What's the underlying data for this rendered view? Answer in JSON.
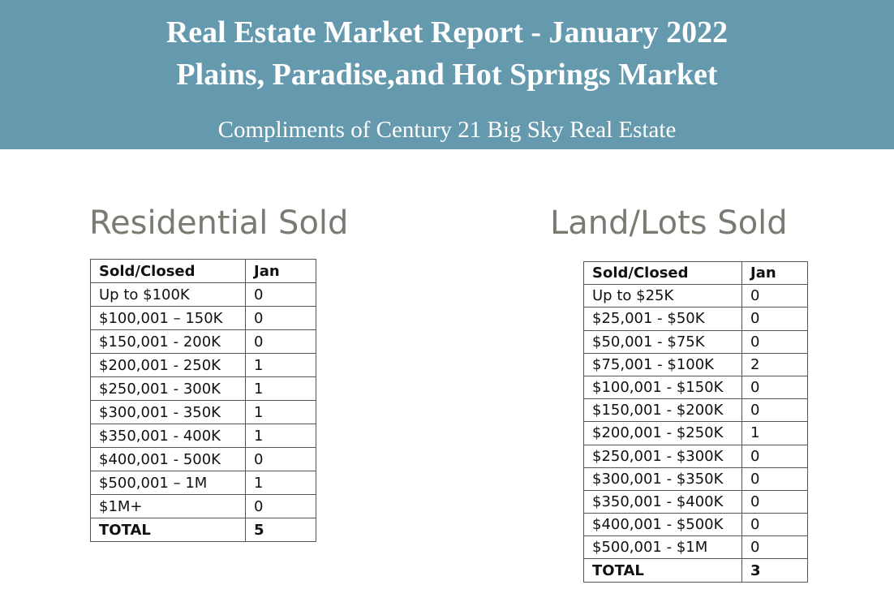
{
  "header": {
    "title_line1": "Real Estate Market Report - January 2022",
    "title_line2": "Plains, Paradise,and Hot Springs Market",
    "subtitle": "Compliments of Century 21 Big Sky Real Estate"
  },
  "colors": {
    "banner": "#6499ae",
    "section_title": "#7a7a72"
  },
  "residential": {
    "title": "Residential Sold",
    "columns": [
      "Sold/Closed",
      "Jan"
    ],
    "rows": [
      [
        "Up to $100K",
        "0"
      ],
      [
        "$100,001 – 150K",
        "0"
      ],
      [
        "$150,001 - 200K",
        "0"
      ],
      [
        "$200,001 - 250K",
        "1"
      ],
      [
        "$250,001 - 300K",
        "1"
      ],
      [
        "$300,001 - 350K",
        "1"
      ],
      [
        "$350,001 - 400K",
        "1"
      ],
      [
        "$400,001 - 500K",
        "0"
      ],
      [
        "$500,001 – 1M",
        "1"
      ],
      [
        "$1M+",
        "0"
      ]
    ],
    "total": [
      "TOTAL",
      "5"
    ]
  },
  "land": {
    "title": "Land/Lots Sold",
    "columns": [
      "Sold/Closed",
      "Jan"
    ],
    "rows": [
      [
        "Up to $25K",
        "0"
      ],
      [
        "$25,001 - $50K",
        "0"
      ],
      [
        "$50,001 - $75K",
        "0"
      ],
      [
        "$75,001 - $100K",
        "2"
      ],
      [
        "$100,001 - $150K",
        "0"
      ],
      [
        "$150,001 - $200K",
        "0"
      ],
      [
        "$200,001 - $250K",
        "1"
      ],
      [
        "$250,001 - $300K",
        "0"
      ],
      [
        "$300,001 - $350K",
        "0"
      ],
      [
        "$350,001 - $400K",
        "0"
      ],
      [
        "$400,001 - $500K",
        "0"
      ],
      [
        "$500,001 - $1M",
        "0"
      ]
    ],
    "total": [
      "TOTAL",
      "3"
    ]
  }
}
